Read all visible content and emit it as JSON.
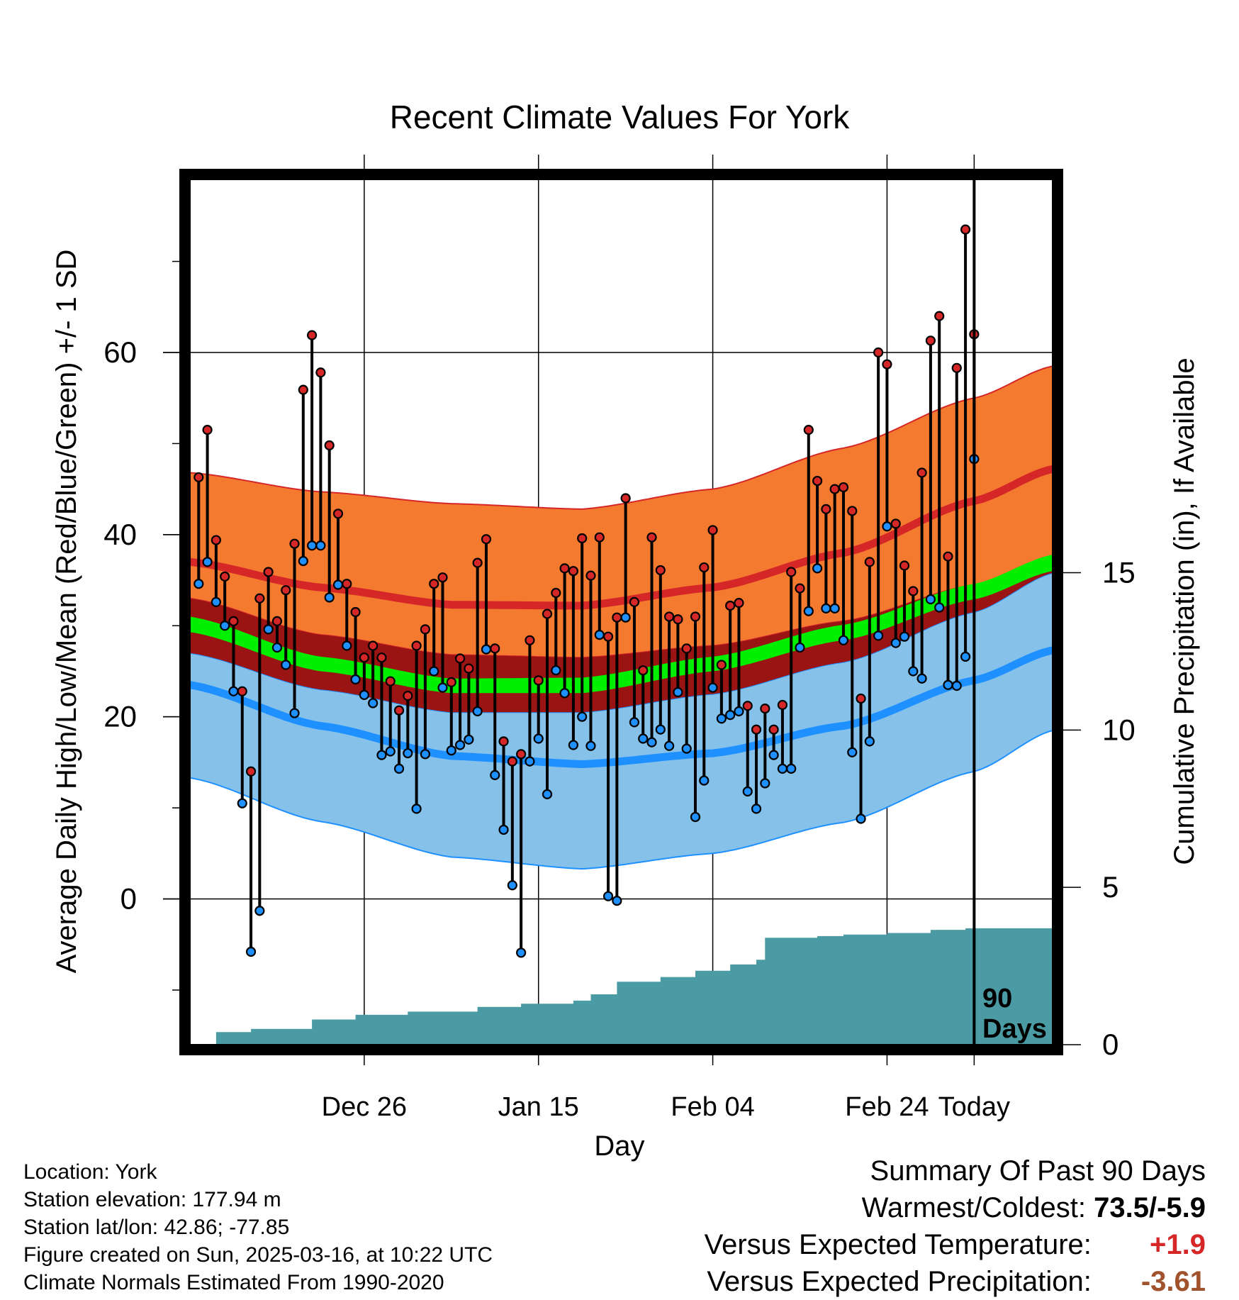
{
  "title": "Recent Climate Values For York",
  "chart_data": {
    "type": "line",
    "title": "Recent Climate Values For York",
    "xlabel": "Day",
    "ylabel_left": "Average Daily High/Low/Mean (Red/Blue/Green) +/- 1 SD",
    "ylabel_right": "Cumulative Precipitation (in), If Available",
    "x_ticks": [
      "Dec 26",
      "Jan 15",
      "Feb 04",
      "Feb 24",
      "Today"
    ],
    "y_ticks_left": [
      "0",
      "20",
      "40",
      "60"
    ],
    "y_ticks_right": [
      "0",
      "5",
      "10",
      "15"
    ],
    "ylim_left": [
      -16,
      79
    ],
    "precip_axis_max": 27.5,
    "x_range_days": [
      -90,
      9
    ],
    "today_label": [
      "90",
      "Days"
    ],
    "daily_high": [
      46.3,
      51.5,
      39.4,
      35.4,
      30.5,
      22.8,
      14.0,
      33.0,
      35.9,
      30.5,
      33.9,
      39.0,
      55.9,
      61.9,
      57.8,
      49.8,
      42.3,
      34.6,
      31.5,
      26.5,
      27.8,
      26.5,
      23.9,
      20.7,
      22.3,
      27.8,
      29.6,
      34.6,
      35.3,
      23.8,
      26.4,
      25.3,
      36.9,
      39.5,
      27.5,
      17.3,
      15.1,
      15.9,
      28.4,
      24.0,
      31.3,
      33.6,
      36.3,
      36.0,
      39.6,
      35.5,
      39.7,
      28.8,
      30.9,
      44.0,
      32.6,
      25.1,
      39.7,
      36.1,
      31.0,
      30.7,
      27.5,
      31.0,
      36.4,
      40.5,
      25.7,
      32.2,
      32.5,
      21.2,
      18.6,
      20.9,
      18.6,
      21.3,
      35.9,
      34.1,
      51.5,
      45.9,
      42.8,
      45.0,
      45.2,
      42.6,
      22.0,
      37.0,
      60.0,
      58.7,
      41.2,
      36.6,
      33.8,
      46.8,
      61.3,
      64.0,
      37.6,
      58.3,
      73.5,
      62.0
    ],
    "daily_low": [
      34.6,
      37.0,
      32.6,
      30.0,
      22.8,
      10.5,
      -5.8,
      -1.3,
      29.6,
      27.6,
      25.7,
      20.4,
      37.1,
      38.8,
      38.8,
      33.1,
      34.5,
      27.8,
      24.1,
      22.4,
      21.5,
      15.8,
      16.2,
      14.3,
      16.0,
      9.9,
      15.9,
      25.0,
      23.2,
      16.3,
      16.9,
      17.5,
      20.6,
      27.4,
      13.6,
      7.6,
      1.5,
      -5.9,
      15.1,
      17.6,
      11.5,
      25.1,
      22.6,
      16.9,
      20.0,
      16.8,
      29.0,
      0.3,
      -0.2,
      30.9,
      19.4,
      17.6,
      17.2,
      18.6,
      16.8,
      22.7,
      16.5,
      9.0,
      13.0,
      23.2,
      19.8,
      20.2,
      20.6,
      11.8,
      9.9,
      12.7,
      15.8,
      14.3,
      14.3,
      27.6,
      31.6,
      36.3,
      31.9,
      31.9,
      28.4,
      16.1,
      8.8,
      17.3,
      28.9,
      40.9,
      28.1,
      28.8,
      25.0,
      24.2,
      32.9,
      32.0,
      23.5,
      23.4,
      26.6,
      48.3
    ],
    "normal_high": {
      "days": [
        -90,
        -75,
        -60,
        -45,
        -30,
        -15,
        0,
        9
      ],
      "upper": [
        46.8,
        44.7,
        43.4,
        42.8,
        45.0,
        49.5,
        55.0,
        58.5
      ],
      "mean": [
        37.0,
        34.2,
        32.3,
        32.2,
        34.2,
        38.0,
        43.7,
        47.2
      ],
      "lower": [
        33.0,
        29.0,
        26.8,
        26.5,
        27.8,
        30.5,
        34.5,
        37.0
      ]
    },
    "normal_mean": {
      "days": [
        -90,
        -75,
        -60,
        -45,
        -30,
        -15,
        0,
        9
      ],
      "upper": [
        31.0,
        26.6,
        24.2,
        24.3,
        26.6,
        30.1,
        34.6,
        37.8
      ],
      "lower": [
        29.3,
        25.0,
        22.6,
        22.6,
        25.0,
        28.4,
        32.9,
        36.0
      ]
    },
    "normal_low": {
      "days": [
        -90,
        -75,
        -60,
        -45,
        -30,
        -15,
        0,
        9
      ],
      "upper": [
        27.0,
        23.0,
        20.5,
        20.5,
        22.5,
        26.0,
        31.5,
        35.8
      ],
      "mean": [
        23.5,
        19.0,
        15.7,
        14.8,
        16.0,
        19.0,
        24.0,
        27.3
      ],
      "lower": [
        13.3,
        8.5,
        4.6,
        3.3,
        5.0,
        8.4,
        14.0,
        18.5
      ]
    },
    "precip_cumulative": {
      "days": [
        -90,
        -87,
        -83,
        -76,
        -71,
        -65,
        -57,
        -52,
        -46,
        -44,
        -41,
        -36,
        -32,
        -28,
        -25,
        -24,
        -20,
        -18,
        -15,
        -10,
        -5,
        -1
      ],
      "values": [
        0.0,
        0.4,
        0.5,
        0.8,
        0.95,
        1.05,
        1.2,
        1.3,
        1.4,
        1.6,
        2.0,
        2.15,
        2.35,
        2.55,
        2.7,
        3.4,
        3.4,
        3.45,
        3.5,
        3.55,
        3.65,
        3.7
      ]
    }
  },
  "info": {
    "location": "Location: York",
    "elevation": "Station elevation: 177.94 m",
    "latlon": "Station lat/lon: 42.86; -77.85",
    "created": "Figure created on Sun, 2025-03-16, at 10:22 UTC",
    "normals": "Climate Normals Estimated From 1990-2020"
  },
  "summary": {
    "heading": "Summary Of Past 90 Days",
    "warmest_label": "Warmest/Coldest:",
    "warmest_value": "73.5/-5.9",
    "temp_label": "Versus Expected Temperature:",
    "temp_value": "+1.9",
    "precip_label": "Versus Expected Precipitation:",
    "precip_value": "-3.61"
  },
  "colors": {
    "high_band": "#f47a30",
    "high_band_edge": "#d62728",
    "high_mean": "#d62728",
    "mean_band": "#00ee00",
    "overlap": "#9b1414",
    "low_band": "#85c1e9",
    "low_band_edge": "#1e90ff",
    "low_mean": "#1e90ff",
    "precip": "#4a9ba3",
    "high_dot": "#d62728",
    "low_dot": "#1e90ff"
  }
}
